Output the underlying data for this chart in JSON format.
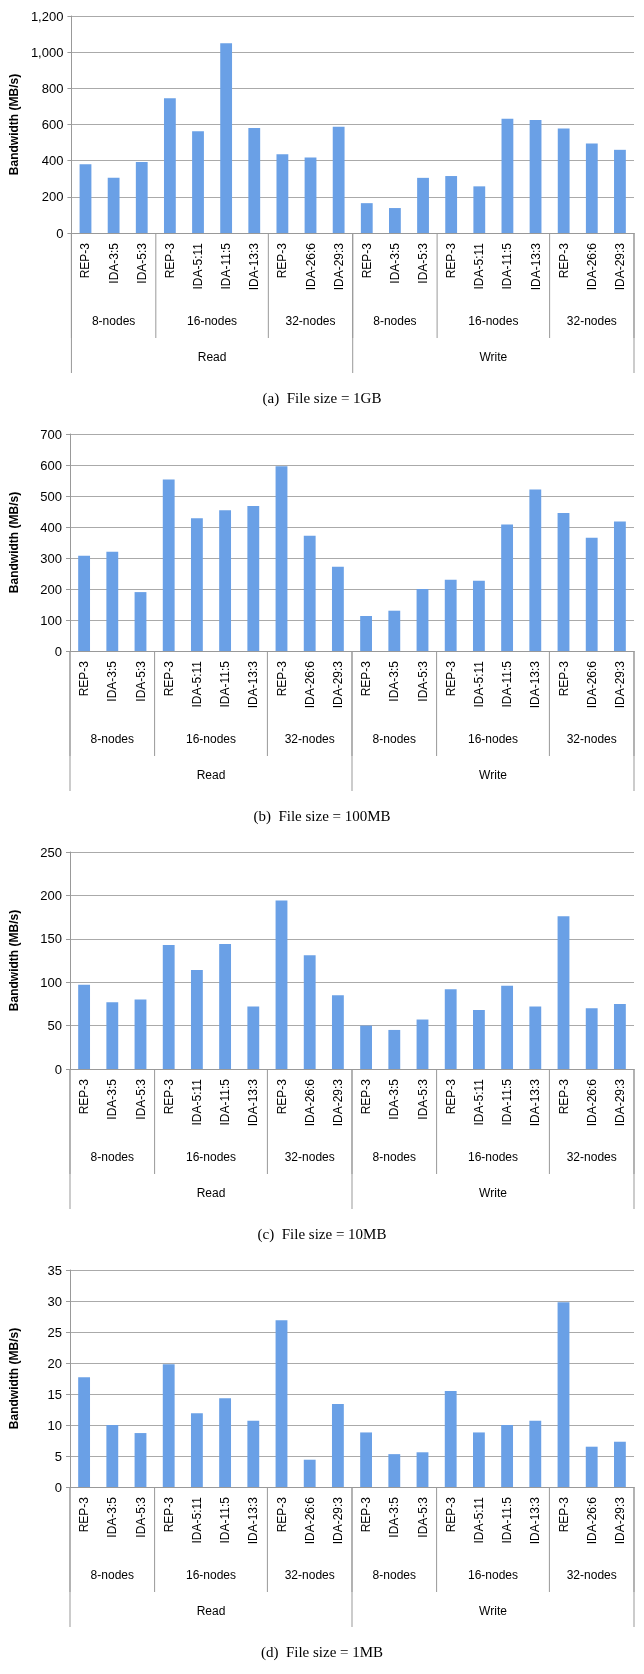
{
  "chart_data": [
    {
      "type": "bar",
      "title": "(a)  File size = 1GB",
      "ylabel": "Bandwidth (MB/s)",
      "color": "#6aa0e6",
      "grid": "y",
      "categories": [
        "REP-3",
        "IDA-3:5",
        "IDA-5:3",
        "REP-3",
        "IDA-5:11",
        "IDA-11:5",
        "IDA-13:3",
        "REP-3",
        "IDA-26:6",
        "IDA-29:3",
        "REP-3",
        "IDA-3:5",
        "IDA-5:3",
        "REP-3",
        "IDA-5:11",
        "IDA-11:5",
        "IDA-13:3",
        "REP-3",
        "IDA-26:6",
        "IDA-29:3"
      ],
      "values": [
        380,
        305,
        393,
        745,
        562,
        1050,
        580,
        435,
        418,
        588,
        165,
        138,
        305,
        315,
        258,
        632,
        625,
        578,
        495,
        460
      ],
      "ylim": [
        0,
        1200
      ],
      "yticks": [
        0,
        200,
        400,
        600,
        800,
        {
          "value": 1000,
          "label": "1,000"
        },
        {
          "value": 1200,
          "label": "1,200"
        }
      ],
      "annotations": [
        "8-nodes",
        "16-nodes",
        "32-nodes",
        "8-nodes",
        "16-nodes",
        "32-nodes",
        "Read",
        "Write"
      ]
    },
    {
      "type": "bar",
      "title": "(b)  File size = 100MB",
      "ylabel": "Bandwidth (MB/s)",
      "color": "#6aa0e6",
      "grid": "y",
      "categories": [
        "REP-3",
        "IDA-3:5",
        "IDA-5:3",
        "REP-3",
        "IDA-5:11",
        "IDA-11:5",
        "IDA-13:3",
        "REP-3",
        "IDA-26:6",
        "IDA-29:3",
        "REP-3",
        "IDA-3:5",
        "IDA-5:3",
        "REP-3",
        "IDA-5:11",
        "IDA-11:5",
        "IDA-13:3",
        "REP-3",
        "IDA-26:6",
        "IDA-29:3"
      ],
      "values": [
        307,
        320,
        190,
        553,
        428,
        454,
        468,
        596,
        372,
        272,
        113,
        130,
        200,
        230,
        227,
        408,
        521,
        445,
        365,
        418
      ],
      "ylim": [
        0,
        700
      ],
      "yticks": [
        0,
        100,
        200,
        300,
        400,
        500,
        600,
        700
      ],
      "annotations": [
        "8-nodes",
        "16-nodes",
        "32-nodes",
        "8-nodes",
        "16-nodes",
        "32-nodes",
        "Read",
        "Write"
      ]
    },
    {
      "type": "bar",
      "title": "(c)  File size = 10MB",
      "ylabel": "Bandwidth (MB/s)",
      "color": "#6aa0e6",
      "grid": "y",
      "categories": [
        "REP-3",
        "IDA-3:5",
        "IDA-5:3",
        "REP-3",
        "IDA-5:11",
        "IDA-11:5",
        "IDA-13:3",
        "REP-3",
        "IDA-26:6",
        "IDA-29:3",
        "REP-3",
        "IDA-3:5",
        "IDA-5:3",
        "REP-3",
        "IDA-5:11",
        "IDA-11:5",
        "IDA-13:3",
        "REP-3",
        "IDA-26:6",
        "IDA-29:3"
      ],
      "values": [
        97,
        77,
        80,
        143,
        114,
        144,
        72,
        194,
        131,
        85,
        50,
        45,
        57,
        92,
        68,
        96,
        72,
        176,
        70,
        75
      ],
      "ylim": [
        0,
        250
      ],
      "yticks": [
        0,
        50,
        100,
        150,
        200,
        250
      ],
      "annotations": [
        "8-nodes",
        "16-nodes",
        "32-nodes",
        "8-nodes",
        "16-nodes",
        "32-nodes",
        "Read",
        "Write"
      ]
    },
    {
      "type": "bar",
      "title": "(d)  File size = 1MB",
      "ylabel": "Bandwidth (MB/s)",
      "color": "#6aa0e6",
      "grid": "y",
      "categories": [
        "REP-3",
        "IDA-3:5",
        "IDA-5:3",
        "REP-3",
        "IDA-5:11",
        "IDA-11:5",
        "IDA-13:3",
        "REP-3",
        "IDA-26:6",
        "IDA-29:3",
        "REP-3",
        "IDA-3:5",
        "IDA-5:3",
        "REP-3",
        "IDA-5:11",
        "IDA-11:5",
        "IDA-13:3",
        "REP-3",
        "IDA-26:6",
        "IDA-29:3"
      ],
      "values": [
        17.7,
        10,
        8.7,
        19.8,
        11.9,
        14.3,
        10.7,
        26.9,
        4.4,
        13.4,
        8.8,
        5.3,
        5.6,
        15.5,
        8.8,
        10,
        10.7,
        29.8,
        6.5,
        7.3
      ],
      "ylim": [
        0,
        35
      ],
      "yticks": [
        0,
        5,
        10,
        15,
        20,
        25,
        30,
        35
      ],
      "annotations": [
        "8-nodes",
        "16-nodes",
        "32-nodes",
        "8-nodes",
        "16-nodes",
        "32-nodes",
        "Read",
        "Write"
      ]
    }
  ]
}
